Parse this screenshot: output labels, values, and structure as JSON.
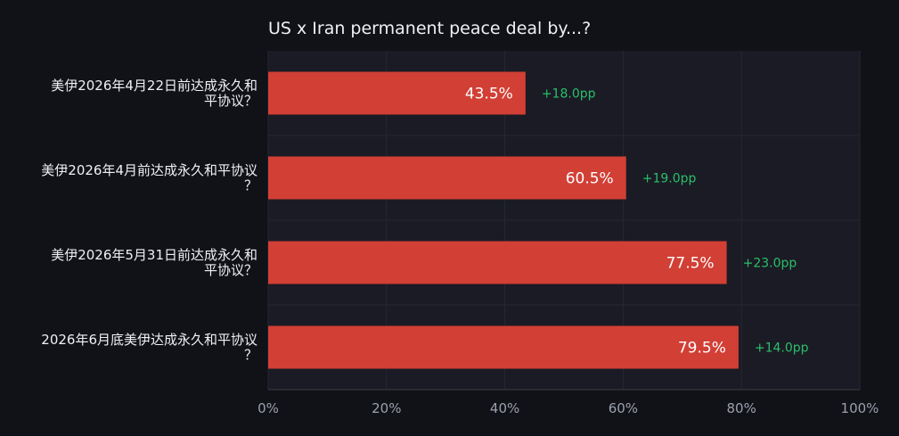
{
  "chart_data": {
    "type": "bar",
    "orientation": "horizontal",
    "title": "US x Iran permanent peace deal by...?",
    "xlabel": "",
    "ylabel": "",
    "xlim": [
      0,
      100
    ],
    "grid": true,
    "legend": "none",
    "x_tick_labels": [
      "0%",
      "20%",
      "40%",
      "60%",
      "80%",
      "100%"
    ],
    "categories": [
      [
        "美伊2026年4月22日前达成永久和",
        "平协议？"
      ],
      [
        "美伊2026年4月前达成永久和平协议",
        "？"
      ],
      [
        "美伊2026年5月31日前达成永久和",
        "平协议？"
      ],
      [
        "2026年6月底美伊达成永久和平协议",
        "？"
      ]
    ],
    "values": [
      43.5,
      60.5,
      77.5,
      79.5
    ],
    "value_labels": [
      "43.5%",
      "60.5%",
      "77.5%",
      "79.5%"
    ],
    "annotations": [
      "+18.0pp",
      "+19.0pp",
      "+23.0pp",
      "+14.0pp"
    ],
    "colors": {
      "bar": "#d13f35",
      "annotation": "#2bbf6a",
      "plot_background": "#1a1b24",
      "page_background": "#111217"
    }
  }
}
